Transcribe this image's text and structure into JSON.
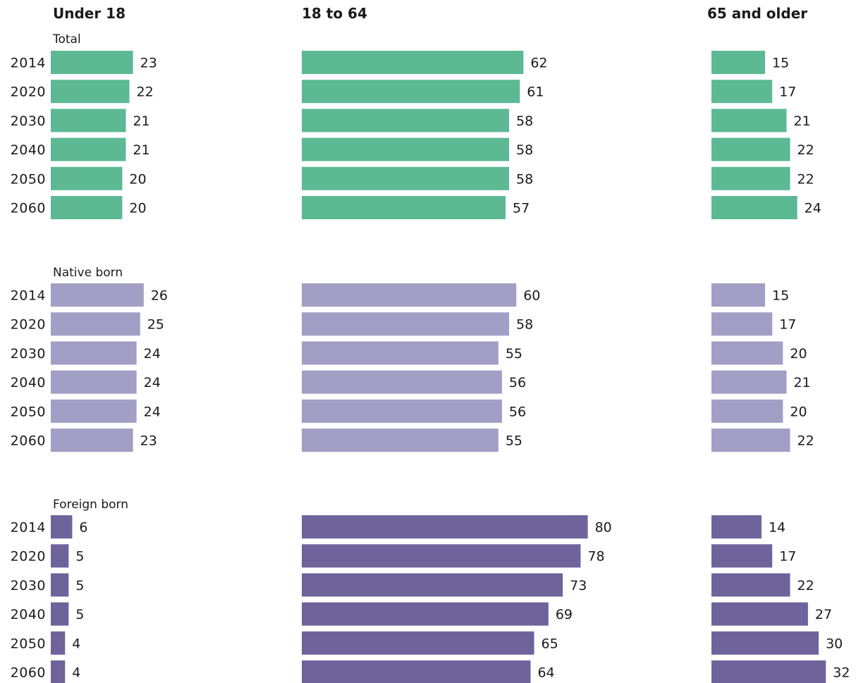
{
  "chart_data": {
    "type": "bar",
    "orientation": "horizontal",
    "columns": [
      "Under 18",
      "18 to 64",
      "65 and older"
    ],
    "categories": [
      "2014",
      "2020",
      "2030",
      "2040",
      "2050",
      "2060"
    ],
    "groups": [
      {
        "name": "Total",
        "color": "#5cb993",
        "series": [
          {
            "column": "Under 18",
            "values": [
              23,
              22,
              21,
              21,
              20,
              20
            ]
          },
          {
            "column": "18 to 64",
            "values": [
              62,
              61,
              58,
              58,
              58,
              57
            ]
          },
          {
            "column": "65 and older",
            "values": [
              15,
              17,
              21,
              22,
              22,
              24
            ]
          }
        ]
      },
      {
        "name": "Native born",
        "color": "#a19fc5",
        "series": [
          {
            "column": "Under 18",
            "values": [
              26,
              25,
              24,
              24,
              24,
              23
            ]
          },
          {
            "column": "18 to 64",
            "values": [
              60,
              58,
              55,
              56,
              56,
              55
            ]
          },
          {
            "column": "65 and older",
            "values": [
              15,
              17,
              20,
              21,
              20,
              22
            ]
          }
        ]
      },
      {
        "name": "Foreign born",
        "color": "#6f639c",
        "series": [
          {
            "column": "Under 18",
            "values": [
              6,
              5,
              5,
              5,
              4,
              4
            ]
          },
          {
            "column": "18 to 64",
            "values": [
              80,
              78,
              73,
              69,
              65,
              64
            ]
          },
          {
            "column": "65 and older",
            "values": [
              14,
              17,
              22,
              27,
              30,
              32
            ]
          }
        ]
      }
    ],
    "title": "",
    "xlabel": "",
    "ylabel": "",
    "grid": false,
    "legend": "none"
  }
}
